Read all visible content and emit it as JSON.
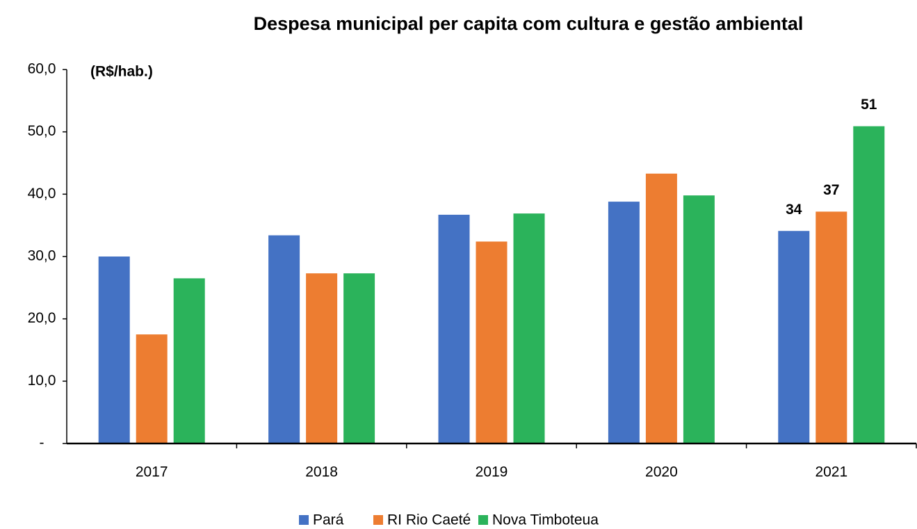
{
  "chart_data": {
    "type": "bar",
    "title": "Despesa municipal per capita com cultura e gestão ambiental",
    "y_label": "(R$/hab.)",
    "categories": [
      "2017",
      "2018",
      "2019",
      "2020",
      "2021"
    ],
    "series": [
      {
        "name": "Pará",
        "color": "#4472c4",
        "values": [
          30.0,
          33.4,
          36.7,
          38.8,
          34.1
        ],
        "value_labels": [
          null,
          null,
          null,
          null,
          "34"
        ]
      },
      {
        "name": "RI Rio Caeté",
        "color": "#ed7d31",
        "values": [
          17.5,
          27.3,
          32.4,
          43.3,
          37.2
        ],
        "value_labels": [
          null,
          null,
          null,
          null,
          "37"
        ]
      },
      {
        "name": "Nova Timboteua",
        "color": "#2bb35b",
        "values": [
          26.5,
          27.3,
          36.9,
          39.8,
          50.9
        ],
        "value_labels": [
          null,
          null,
          null,
          null,
          "51"
        ]
      }
    ],
    "ylim": [
      0,
      60
    ],
    "yticks": [
      {
        "value": 0,
        "label": "-"
      },
      {
        "value": 10,
        "label": "10,0"
      },
      {
        "value": 20,
        "label": "20,0"
      },
      {
        "value": 30,
        "label": "30,0"
      },
      {
        "value": 40,
        "label": "40,0"
      },
      {
        "value": 50,
        "label": "50,0"
      },
      {
        "value": 60,
        "label": "60,0"
      }
    ],
    "grid": false,
    "legend": "bottom"
  }
}
